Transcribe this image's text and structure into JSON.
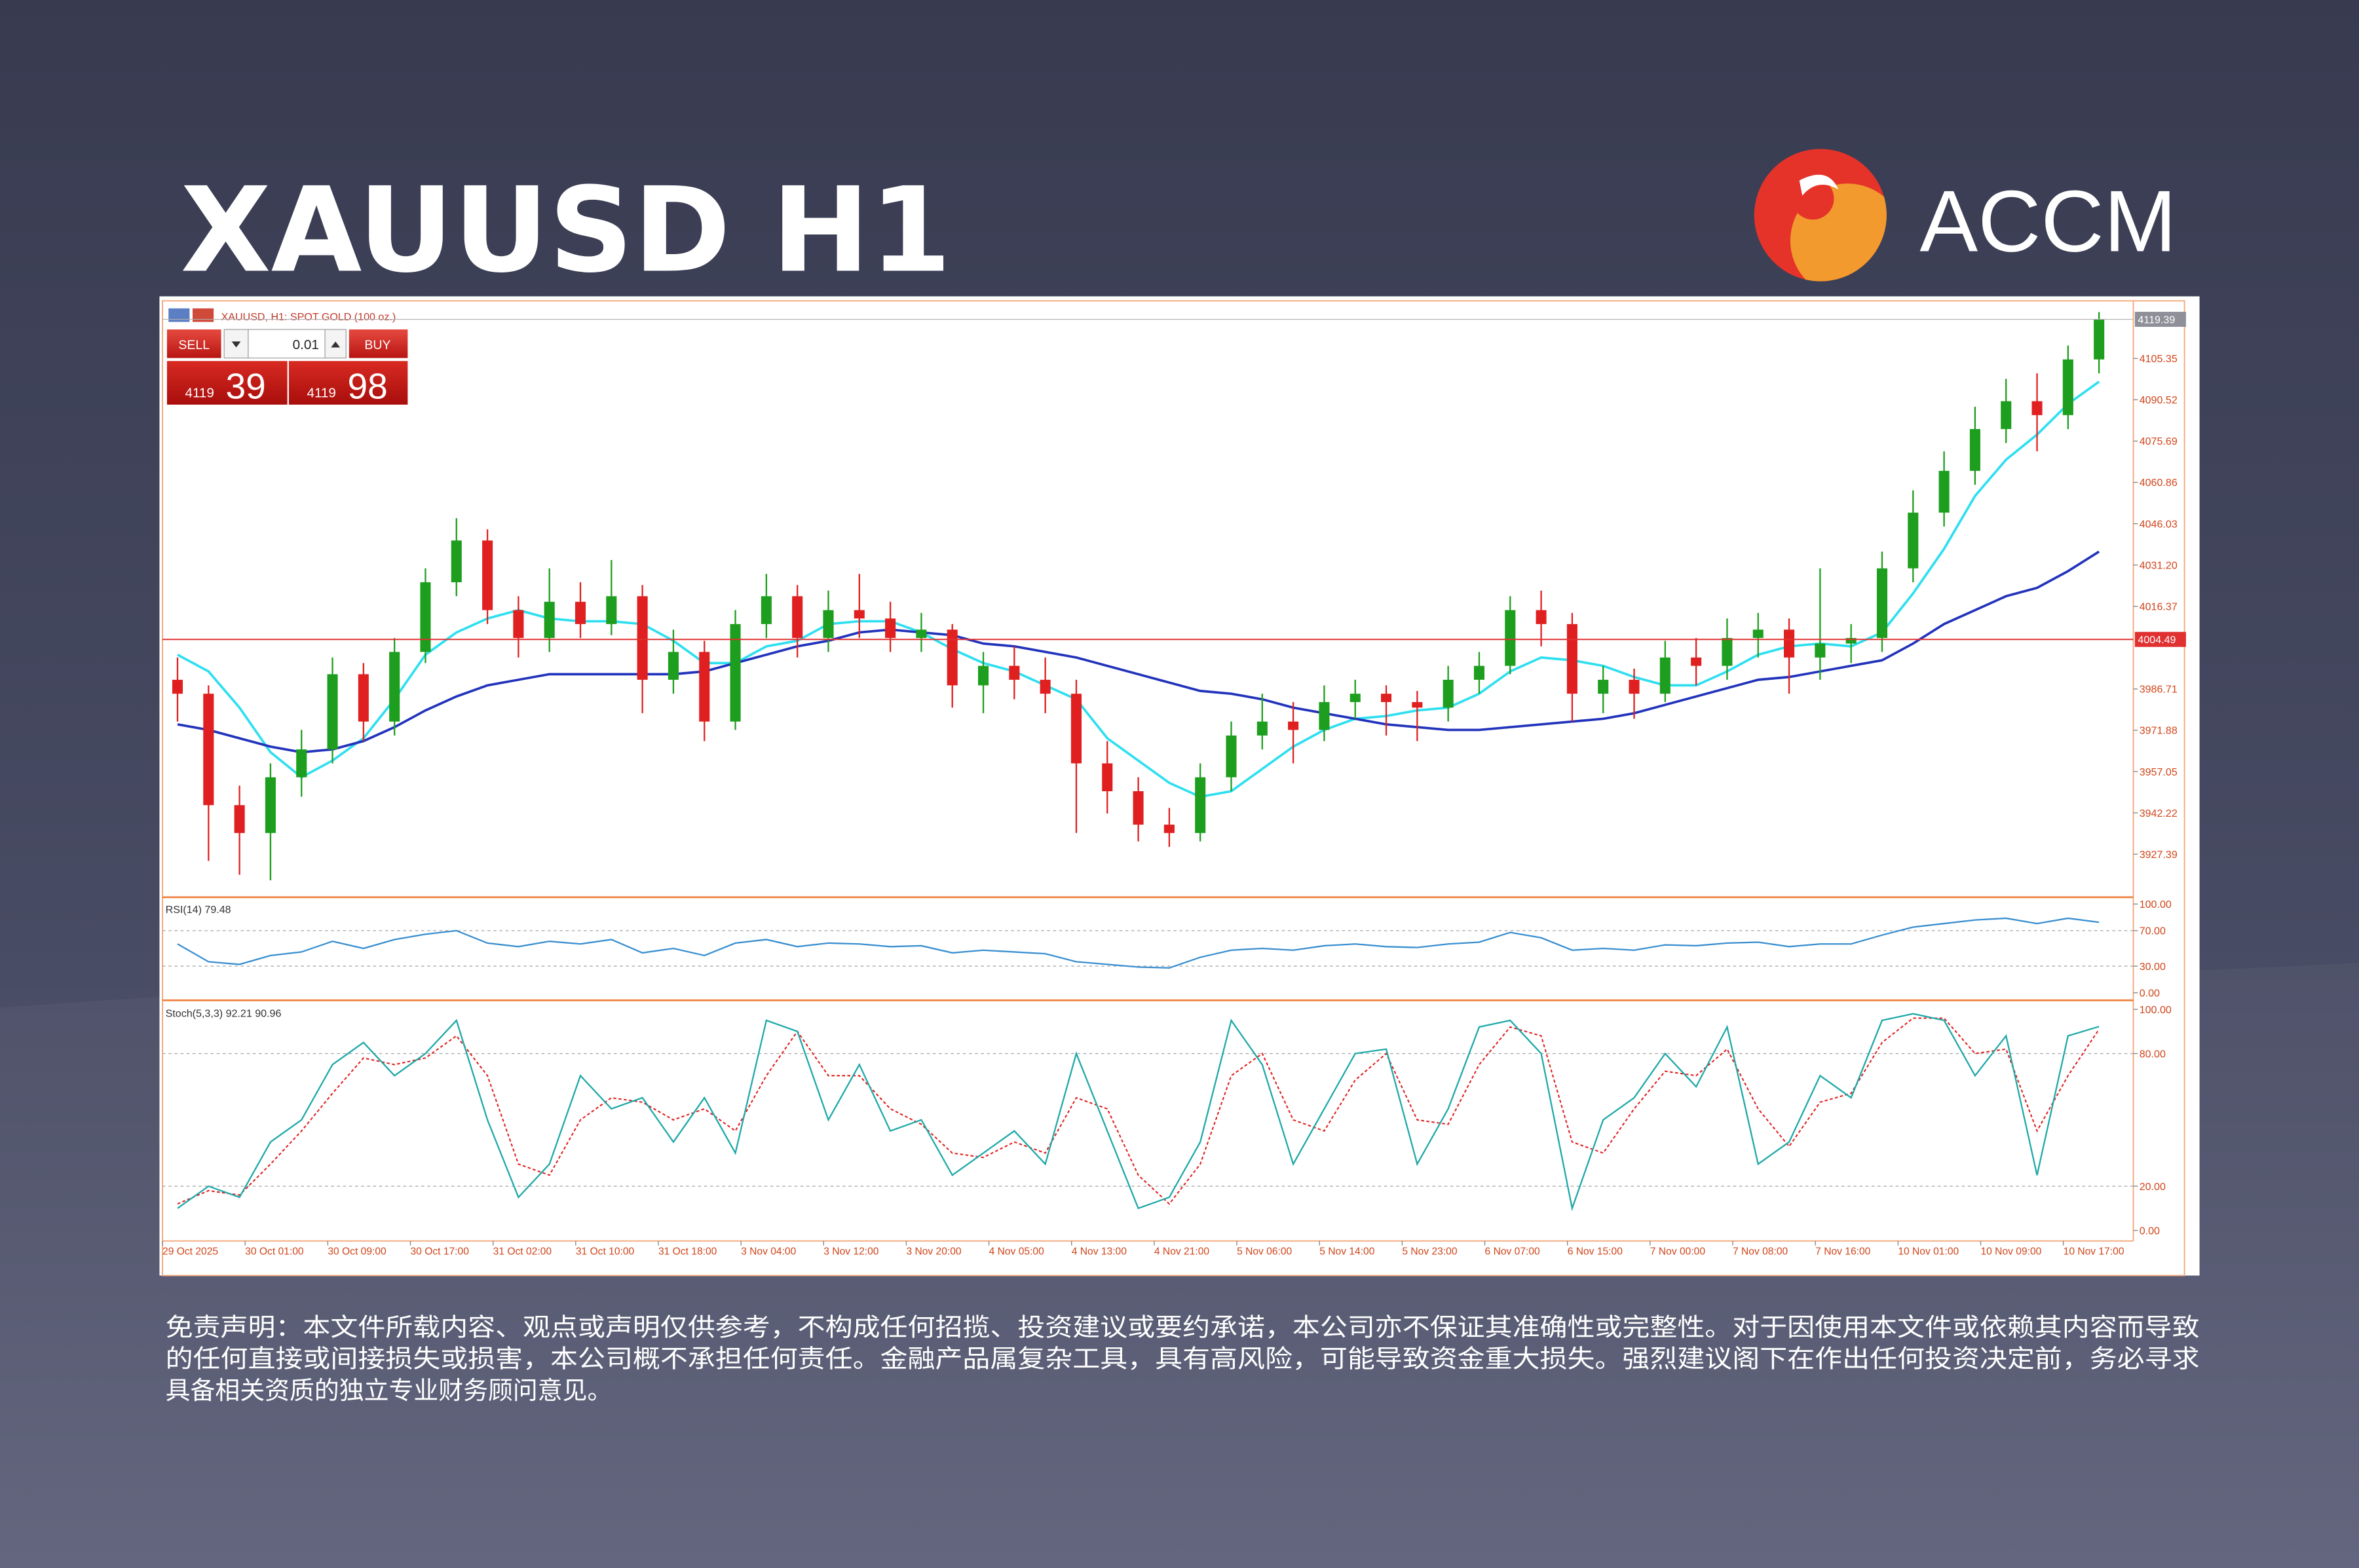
{
  "header": {
    "title": "XAUUSD H1",
    "logo": "ACCM"
  },
  "disclaimer": [
    "免责声明：本文件所载内容、观点或声明仅供参考，不构成任何招揽、投资建议或要约承诺，本公司亦不保证其准确性或完整性。对于因使用本文件或依赖其内容而导致",
    "的任何直接或间接损失或损害，本公司概不承担任何责任。金融产品属复杂工具，具有高风险，可能导致资金重大损失。强烈建议阁下在作出任何投资决定前，务必寻求",
    "具备相关资质的独立专业财务顾问意见。"
  ],
  "chart_data": {
    "type": "candlestick",
    "symbol_label": "XAUUSD, H1:  SPOT GOLD (100 oz.)",
    "trade_panel": {
      "sell": "SELL",
      "buy": "BUY",
      "lot": "0.01",
      "bid_big": "4119",
      "bid_small": "39",
      "ask_big": "4119",
      "ask_small": "98"
    },
    "up_color": "#1e9e1e",
    "down_color": "#e02020",
    "open": [
      3990,
      3985,
      3945,
      3935,
      3955,
      3965,
      3992,
      3975,
      4000,
      4025,
      4040,
      4015,
      4005,
      4018,
      4010,
      4020,
      3990,
      4000,
      3975,
      4010,
      4020,
      4005,
      4015,
      4012,
      4005,
      4008,
      3988,
      3995,
      3990,
      3985,
      3960,
      3950,
      3938,
      3935,
      3955,
      3970,
      3975,
      3972,
      3982,
      3985,
      3982,
      3980,
      3990,
      3995,
      4015,
      4010,
      3985,
      3990,
      3985,
      3998,
      3995,
      4005,
      4008,
      3998,
      4003,
      4005,
      4030,
      4050,
      4065,
      4080,
      4090,
      4085,
      4105
    ],
    "high": [
      3998,
      3988,
      3952,
      3960,
      3972,
      3998,
      3996,
      4005,
      4030,
      4048,
      4044,
      4020,
      4030,
      4025,
      4033,
      4024,
      4008,
      4004,
      4015,
      4028,
      4024,
      4022,
      4028,
      4018,
      4014,
      4010,
      4000,
      4002,
      3998,
      3990,
      3968,
      3955,
      3944,
      3960,
      3975,
      3985,
      3982,
      3988,
      3990,
      3988,
      3986,
      3995,
      4000,
      4020,
      4022,
      4014,
      3995,
      3994,
      4004,
      4005,
      4012,
      4014,
      4012,
      4030,
      4010,
      4036,
      4058,
      4072,
      4088,
      4098,
      4100,
      4110,
      4122
    ],
    "low": [
      3975,
      3925,
      3920,
      3918,
      3948,
      3960,
      3968,
      3970,
      3996,
      4020,
      4010,
      3998,
      4000,
      4005,
      4006,
      3978,
      3985,
      3968,
      3972,
      4005,
      3998,
      4000,
      4005,
      4000,
      4000,
      3980,
      3978,
      3983,
      3978,
      3935,
      3942,
      3932,
      3930,
      3932,
      3950,
      3965,
      3960,
      3968,
      3976,
      3970,
      3968,
      3975,
      3985,
      3992,
      4002,
      3975,
      3978,
      3976,
      3982,
      3988,
      3990,
      3998,
      3985,
      3990,
      3996,
      4000,
      4025,
      4045,
      4060,
      4075,
      4072,
      4080,
      4100
    ],
    "close": [
      3985,
      3945,
      3935,
      3955,
      3965,
      3992,
      3975,
      4000,
      4025,
      4040,
      4015,
      4005,
      4018,
      4010,
      4020,
      3990,
      4000,
      3975,
      4010,
      4020,
      4005,
      4015,
      4012,
      4005,
      4008,
      3988,
      3995,
      3990,
      3985,
      3960,
      3950,
      3938,
      3935,
      3955,
      3970,
      3975,
      3972,
      3982,
      3985,
      3982,
      3980,
      3990,
      3995,
      4015,
      4010,
      3985,
      3990,
      3985,
      3998,
      3995,
      4005,
      4008,
      3998,
      4003,
      4005,
      4030,
      4050,
      4065,
      4080,
      4090,
      4085,
      4105,
      4119.39
    ],
    "moving_averages": [
      {
        "color": "#2fdff0",
        "values": [
          3999,
          3993,
          3980,
          3964,
          3955,
          3961,
          3969,
          3983,
          3999,
          4007,
          4012,
          4015,
          4012,
          4011,
          4011,
          4010,
          4004,
          3996,
          3996,
          4002,
          4004,
          4010,
          4011,
          4011,
          4007,
          4001,
          3996,
          3993,
          3988,
          3983,
          3969,
          3961,
          3953,
          3948,
          3950,
          3958,
          3966,
          3972,
          3976,
          3977,
          3979,
          3980,
          3985,
          3993,
          3998,
          3997,
          3995,
          3991,
          3988,
          3988,
          3993,
          3999,
          4002,
          4003,
          4002,
          4007,
          4021,
          4037,
          4056,
          4069,
          4078,
          4089,
          4097
        ]
      },
      {
        "color": "#2233bb",
        "values": [
          3974,
          3972,
          3969,
          3966,
          3964,
          3965,
          3968,
          3973,
          3979,
          3984,
          3988,
          3990,
          3992,
          3992,
          3992,
          3992,
          3992,
          3993,
          3996,
          3999,
          4002,
          4004,
          4007,
          4008,
          4007,
          4006,
          4003,
          4002,
          4000,
          3998,
          3995,
          3992,
          3989,
          3986,
          3985,
          3983,
          3980,
          3978,
          3976,
          3974,
          3973,
          3972,
          3972,
          3973,
          3974,
          3975,
          3976,
          3978,
          3981,
          3984,
          3987,
          3990,
          3991,
          3993,
          3995,
          3997,
          4003,
          4010,
          4015,
          4020,
          4023,
          4029,
          4036
        ]
      }
    ],
    "ylim": [
      3912.2,
      4124.4
    ],
    "yticks": [
      4105.35,
      4090.52,
      4075.69,
      4060.86,
      4046.03,
      {
        "value": 4031.2,
        "label": "4031.20"
      },
      4016.37,
      3986.71,
      3971.88,
      3957.05,
      3942.22,
      3927.39
    ],
    "hline": {
      "value": 4004.49,
      "color": "#e03030"
    },
    "x_labels": [
      "29 Oct 2025",
      "30 Oct 01:00",
      "30 Oct 09:00",
      "30 Oct 17:00",
      "31 Oct 02:00",
      "31 Oct 10:00",
      "31 Oct 18:00",
      "3 Nov 04:00",
      "3 Nov 12:00",
      "3 Nov 20:00",
      "4 Nov 05:00",
      "4 Nov 13:00",
      "4 Nov 21:00",
      "5 Nov 06:00",
      "5 Nov 14:00",
      "5 Nov 23:00",
      "6 Nov 07:00",
      "6 Nov 15:00",
      "7 Nov 00:00",
      "7 Nov 08:00",
      "7 Nov 16:00",
      "10 Nov 01:00",
      "10 Nov 09:00",
      "10 Nov 17:00"
    ],
    "rsi": {
      "label": "RSI(14) 79.48",
      "color": "#3a8fd0",
      "values": [
        55,
        35,
        32,
        42,
        46,
        58,
        50,
        60,
        66,
        70,
        56,
        52,
        58,
        55,
        60,
        45,
        50,
        42,
        56,
        60,
        52,
        56,
        55,
        52,
        53,
        45,
        48,
        46,
        44,
        35,
        32,
        29,
        28,
        40,
        48,
        50,
        48,
        53,
        55,
        52,
        51,
        55,
        57,
        68,
        62,
        48,
        50,
        48,
        54,
        53,
        56,
        57,
        52,
        55,
        55,
        65,
        74,
        78,
        82,
        84,
        78,
        84,
        79.48
      ],
      "ylim": [
        0,
        100
      ],
      "yticks": [
        {
          "value": 100,
          "label": "100.00"
        },
        {
          "value": 70,
          "label": "70.00"
        },
        {
          "value": 30,
          "label": "30.00"
        },
        {
          "value": 0,
          "label": "0.00"
        }
      ],
      "levels": [
        70,
        30
      ]
    },
    "stoch": {
      "label": "Stoch(5,3,3) 92.21 90.96",
      "k": {
        "color": "#1fa8a8",
        "values": [
          10,
          20,
          15,
          40,
          50,
          75,
          85,
          70,
          80,
          95,
          50,
          15,
          30,
          70,
          55,
          60,
          40,
          60,
          35,
          95,
          90,
          50,
          75,
          45,
          50,
          25,
          35,
          45,
          30,
          80,
          45,
          10,
          15,
          40,
          95,
          75,
          30,
          55,
          80,
          82,
          30,
          55,
          92,
          95,
          80,
          10,
          50,
          60,
          80,
          65,
          92,
          30,
          40,
          70,
          60,
          95,
          98,
          95,
          70,
          88,
          25,
          88,
          92.21
        ]
      },
      "d": {
        "color": "#e02020",
        "values": [
          12,
          18,
          16,
          30,
          45,
          62,
          78,
          75,
          78,
          88,
          70,
          30,
          25,
          50,
          60,
          58,
          50,
          55,
          45,
          70,
          90,
          70,
          70,
          55,
          48,
          35,
          33,
          40,
          35,
          60,
          55,
          25,
          12,
          30,
          70,
          80,
          50,
          45,
          68,
          80,
          50,
          48,
          75,
          92,
          88,
          40,
          35,
          55,
          72,
          70,
          82,
          55,
          38,
          58,
          62,
          85,
          96,
          96,
          80,
          82,
          45,
          70,
          90.96
        ]
      },
      "ylim": [
        0,
        100
      ],
      "yticks": [
        {
          "value": 100,
          "label": "100.00"
        },
        {
          "value": 80,
          "label": "80.00"
        },
        {
          "value": 20,
          "label": "20.00"
        },
        {
          "value": 0,
          "label": "0.00"
        }
      ],
      "levels": [
        80,
        20
      ]
    }
  }
}
